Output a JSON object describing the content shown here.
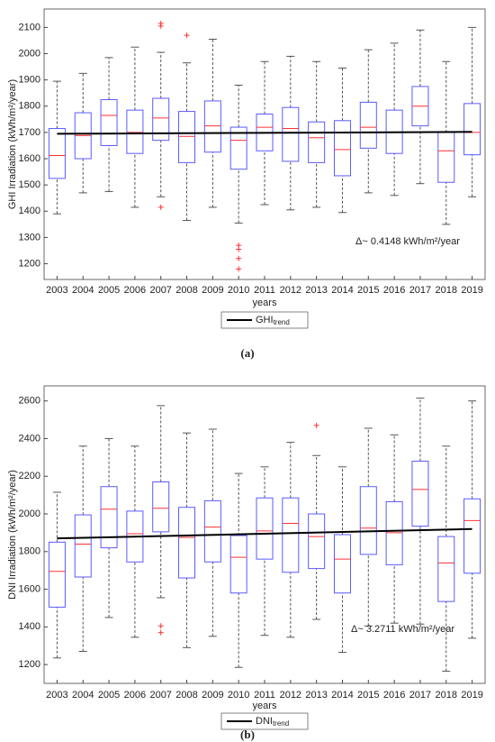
{
  "chart_data": [
    {
      "type": "box",
      "ylabel": "GHI Irradiation (kWh/m²/year)",
      "xlabel": "years",
      "caption": "(a)",
      "annotation": "Δ~ 0.4148 kWh/m²/year",
      "categories": [
        "2003",
        "2004",
        "2005",
        "2006",
        "2007",
        "2008",
        "2009",
        "2010",
        "2011",
        "2012",
        "2013",
        "2014",
        "2015",
        "2016",
        "2017",
        "2018",
        "2019"
      ],
      "low": [
        1390,
        1470,
        1475,
        1415,
        1455,
        1365,
        1415,
        1355,
        1425,
        1405,
        1415,
        1395,
        1470,
        1460,
        1505,
        1350,
        1455
      ],
      "q1": [
        1525,
        1600,
        1650,
        1620,
        1670,
        1585,
        1625,
        1560,
        1630,
        1590,
        1585,
        1535,
        1640,
        1620,
        1725,
        1510,
        1615
      ],
      "median": [
        1612,
        1688,
        1765,
        1700,
        1755,
        1685,
        1725,
        1670,
        1720,
        1715,
        1680,
        1635,
        1720,
        1700,
        1800,
        1630,
        1700
      ],
      "q3": [
        1715,
        1775,
        1825,
        1785,
        1830,
        1780,
        1820,
        1720,
        1770,
        1795,
        1740,
        1745,
        1815,
        1785,
        1875,
        1700,
        1810
      ],
      "high": [
        1895,
        1925,
        1985,
        2025,
        2005,
        1965,
        2055,
        1880,
        1970,
        1990,
        1970,
        1945,
        2015,
        2040,
        2090,
        1970,
        2100
      ],
      "outliers": [
        [],
        [],
        [],
        [],
        [
          2115,
          2105,
          1415
        ],
        [
          2070
        ],
        [],
        [
          1270,
          1255,
          1220,
          1180
        ],
        [],
        [],
        [],
        [],
        [],
        [],
        [],
        [],
        []
      ],
      "box_color": "#5a5aff",
      "median_color": "#ff3030",
      "whisker_color": "#555555",
      "trend": {
        "name": "GHI",
        "name_sub": "trend",
        "values": [
          1695,
          1702
        ],
        "color": "#000000"
      },
      "ylim": [
        1140,
        2170
      ],
      "yticks": [
        1200,
        1300,
        1400,
        1500,
        1600,
        1700,
        1800,
        1900,
        2000,
        2100
      ],
      "grid": false
    },
    {
      "type": "box",
      "ylabel": "DNI Irradiation (kWh/m²/year)",
      "xlabel": "years",
      "caption": "(b)",
      "annotation": "Δ~ 3.2711 kWh/m²/year",
      "categories": [
        "2003",
        "2004",
        "2005",
        "2006",
        "2007",
        "2008",
        "2009",
        "2010",
        "2011",
        "2012",
        "2013",
        "2014",
        "2015",
        "2016",
        "2017",
        "2018",
        "2019"
      ],
      "low": [
        1235,
        1270,
        1450,
        1345,
        1555,
        1290,
        1350,
        1185,
        1355,
        1345,
        1440,
        1265,
        1405,
        1420,
        1415,
        1165,
        1340
      ],
      "q1": [
        1505,
        1665,
        1820,
        1745,
        1905,
        1660,
        1745,
        1580,
        1760,
        1690,
        1710,
        1580,
        1785,
        1730,
        1935,
        1535,
        1685
      ],
      "median": [
        1695,
        1840,
        2025,
        1895,
        2030,
        1875,
        1930,
        1770,
        1910,
        1950,
        1880,
        1760,
        1925,
        1900,
        2130,
        1740,
        1965
      ],
      "q3": [
        1850,
        1995,
        2145,
        2015,
        2170,
        2035,
        2070,
        1885,
        2085,
        2085,
        2000,
        1890,
        2145,
        2065,
        2280,
        1880,
        2080
      ],
      "high": [
        2115,
        2360,
        2400,
        2360,
        2575,
        2430,
        2450,
        2215,
        2250,
        2380,
        2310,
        2250,
        2455,
        2420,
        2615,
        2360,
        2600
      ],
      "outliers": [
        [],
        [],
        [],
        [],
        [
          1405,
          1370
        ],
        [],
        [],
        [],
        [],
        [],
        [
          2470
        ],
        [],
        [],
        [],
        [],
        [],
        []
      ],
      "box_color": "#5a5aff",
      "median_color": "#ff3030",
      "whisker_color": "#555555",
      "trend": {
        "name": "DNI",
        "name_sub": "trend",
        "values": [
          1870,
          1920
        ],
        "color": "#000000"
      },
      "ylim": [
        1100,
        2680
      ],
      "yticks": [
        1200,
        1400,
        1600,
        1800,
        2000,
        2200,
        2400,
        2600
      ],
      "grid": false
    }
  ]
}
